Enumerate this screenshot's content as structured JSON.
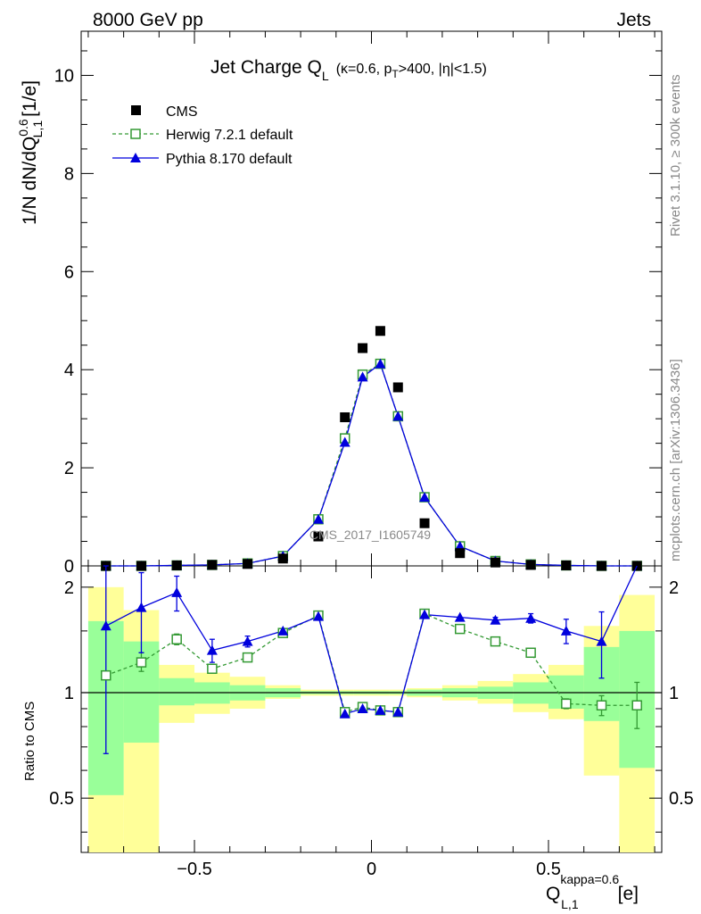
{
  "header": {
    "left": "8000 GeV pp",
    "right": "Jets",
    "side_top": "Rivet 3.1.10, ≥ 300k events",
    "side_bottom": "mcplots.cern.ch [arXiv:1306.3436]",
    "watermark": "CMS_2017_I1605749"
  },
  "title": {
    "main": "Jet Charge Q",
    "main_sub": "L",
    "rest_a": "(κ=0.6, p",
    "rest_sub": "T",
    "rest_b": ">400, |η|<1.5)"
  },
  "axes": {
    "y_label_a": "1/N dN/dQ",
    "y_label_sup": "0.6",
    "y_label_sub": "L,1",
    "y_label_unit": "[1/e]",
    "ratio_label": "Ratio to CMS",
    "x_label_main": "Q",
    "x_label_sup": "kappa=0.6",
    "x_label_sub": "L,1",
    "x_label_unit": "[e]"
  },
  "legend": {
    "cms": "CMS",
    "herwig": "Herwig 7.2.1 default",
    "pythia": "Pythia 8.170 default"
  },
  "colors": {
    "cms": "#000000",
    "herwig": "#339933",
    "pythia": "#0000dd",
    "band_inner": "#99ff99",
    "band_outer": "#ffff99"
  },
  "chart_data": [
    {
      "type": "scatter",
      "panel": "main",
      "xlim": [
        -0.82,
        0.82
      ],
      "ylim": [
        0,
        10.9
      ],
      "y_ticks": [
        0,
        2,
        4,
        6,
        8,
        10
      ],
      "x": [
        -0.75,
        -0.65,
        -0.55,
        -0.45,
        -0.35,
        -0.25,
        -0.15,
        -0.075,
        -0.025,
        0.025,
        0.075,
        0.15,
        0.25,
        0.35,
        0.45,
        0.55,
        0.65,
        0.75
      ],
      "series": [
        {
          "name": "CMS",
          "values": [
            0.0,
            0.0,
            0.01,
            0.02,
            0.04,
            0.15,
            0.6,
            3.03,
            4.44,
            4.79,
            3.64,
            0.87,
            0.26,
            0.07,
            0.02,
            0.01,
            0.0,
            0.0
          ]
        },
        {
          "name": "Herwig 7.2.1 default",
          "values": [
            0.0,
            0.0,
            0.01,
            0.02,
            0.05,
            0.2,
            0.95,
            2.6,
            3.9,
            4.12,
            3.05,
            1.4,
            0.4,
            0.1,
            0.03,
            0.01,
            0.0,
            0.0
          ]
        },
        {
          "name": "Pythia 8.170 default",
          "values": [
            0.0,
            0.0,
            0.01,
            0.02,
            0.05,
            0.2,
            0.95,
            2.52,
            3.85,
            4.12,
            3.05,
            1.4,
            0.4,
            0.1,
            0.03,
            0.01,
            0.0,
            0.0
          ]
        }
      ]
    },
    {
      "type": "line",
      "panel": "ratio",
      "xlim": [
        -0.82,
        0.82
      ],
      "ylim": [
        0.35,
        2.3
      ],
      "y_ticks": [
        0.5,
        1,
        2
      ],
      "x_ticks": [
        -0.5,
        0,
        0.5
      ],
      "x_tick_labels": [
        "−0.5",
        "0",
        "0.5"
      ],
      "bin_edges": [
        -0.8,
        -0.7,
        -0.6,
        -0.5,
        -0.4,
        -0.3,
        -0.2,
        -0.1,
        -0.05,
        0,
        0.05,
        0.1,
        0.2,
        0.3,
        0.4,
        0.5,
        0.6,
        0.7,
        0.8
      ],
      "band_inner": [
        [
          0.51,
          1.6
        ],
        [
          0.72,
          1.4
        ],
        [
          0.92,
          1.1
        ],
        [
          0.93,
          1.07
        ],
        [
          0.95,
          1.05
        ],
        [
          0.97,
          1.03
        ],
        [
          0.99,
          1.01
        ],
        [
          0.99,
          1.01
        ],
        [
          0.99,
          1.01
        ],
        [
          0.99,
          1.01
        ],
        [
          0.99,
          1.01
        ],
        [
          0.98,
          1.02
        ],
        [
          0.97,
          1.03
        ],
        [
          0.96,
          1.04
        ],
        [
          0.93,
          1.07
        ],
        [
          0.9,
          1.12
        ],
        [
          0.83,
          1.35
        ],
        [
          0.61,
          1.5
        ]
      ],
      "band_outer": [
        [
          0.3,
          2.0
        ],
        [
          0.3,
          1.72
        ],
        [
          0.82,
          1.2
        ],
        [
          0.87,
          1.14
        ],
        [
          0.9,
          1.11
        ],
        [
          0.96,
          1.05
        ],
        [
          0.98,
          1.02
        ],
        [
          0.98,
          1.02
        ],
        [
          0.98,
          1.02
        ],
        [
          0.98,
          1.02
        ],
        [
          0.98,
          1.02
        ],
        [
          0.97,
          1.03
        ],
        [
          0.95,
          1.05
        ],
        [
          0.93,
          1.08
        ],
        [
          0.88,
          1.13
        ],
        [
          0.84,
          1.2
        ],
        [
          0.58,
          1.55
        ],
        [
          0.3,
          1.9
        ]
      ],
      "x": [
        -0.75,
        -0.65,
        -0.55,
        -0.45,
        -0.35,
        -0.25,
        -0.15,
        -0.075,
        -0.025,
        0.025,
        0.075,
        0.15,
        0.25,
        0.35,
        0.45,
        0.55,
        0.65,
        0.75
      ],
      "series": [
        {
          "name": "Herwig 7.2.1 default",
          "values": [
            1.12,
            1.22,
            1.42,
            1.17,
            1.26,
            1.48,
            1.66,
            0.88,
            0.91,
            0.89,
            0.88,
            1.68,
            1.52,
            1.4,
            1.3,
            0.93,
            0.92,
            0.92
          ],
          "err_low": [
            0,
            0.07,
            0.05,
            0,
            0,
            0,
            0,
            0,
            0,
            0,
            0,
            0,
            0,
            0,
            0,
            0.03,
            0.06,
            0.13
          ],
          "err_high": [
            0,
            0.08,
            0.05,
            0,
            0,
            0,
            0,
            0,
            0,
            0,
            0,
            0,
            0,
            0,
            0,
            0.03,
            0.06,
            0.15
          ]
        },
        {
          "name": "Pythia 8.170 default",
          "values": [
            1.55,
            1.75,
            1.93,
            1.32,
            1.4,
            1.5,
            1.65,
            0.87,
            0.9,
            0.89,
            0.88,
            1.67,
            1.64,
            1.61,
            1.63,
            1.5,
            1.4,
            2.38
          ],
          "err_low": [
            0.88,
            0.45,
            0.22,
            0.1,
            0.05,
            0,
            0,
            0,
            0,
            0,
            0,
            0,
            0,
            0.03,
            0.05,
            0.12,
            0.3,
            0
          ],
          "err_high": [
            0.88,
            0.45,
            0.22,
            0.1,
            0.05,
            0,
            0,
            0,
            0,
            0,
            0,
            0,
            0,
            0.03,
            0.05,
            0.12,
            0.3,
            0
          ]
        }
      ]
    }
  ]
}
